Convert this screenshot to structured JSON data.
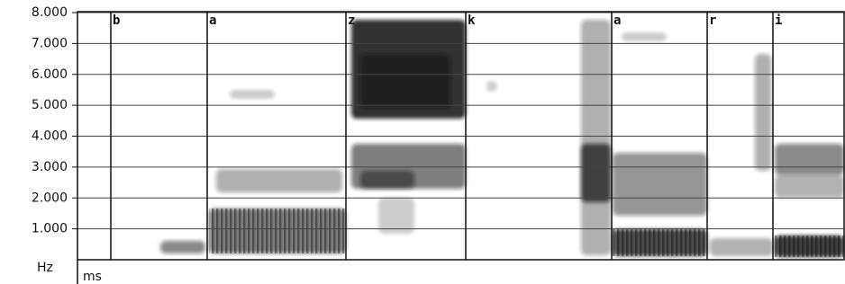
{
  "chart_data": {
    "type": "spectrogram",
    "ylabel": "Hz",
    "xlabel": "ms",
    "ylim": [
      0,
      8000
    ],
    "yticks": [
      {
        "value": 1000,
        "label": "1.000"
      },
      {
        "value": 2000,
        "label": "2.000"
      },
      {
        "value": 3000,
        "label": "3.000"
      },
      {
        "value": 4000,
        "label": "4.000"
      },
      {
        "value": 5000,
        "label": "5.000"
      },
      {
        "value": 6000,
        "label": "6.000"
      },
      {
        "value": 7000,
        "label": "7.000"
      },
      {
        "value": 8000,
        "label": "8.000"
      }
    ],
    "grid": true,
    "segments": [
      "b",
      "a",
      "z",
      "k",
      "a",
      "r",
      "i"
    ]
  }
}
